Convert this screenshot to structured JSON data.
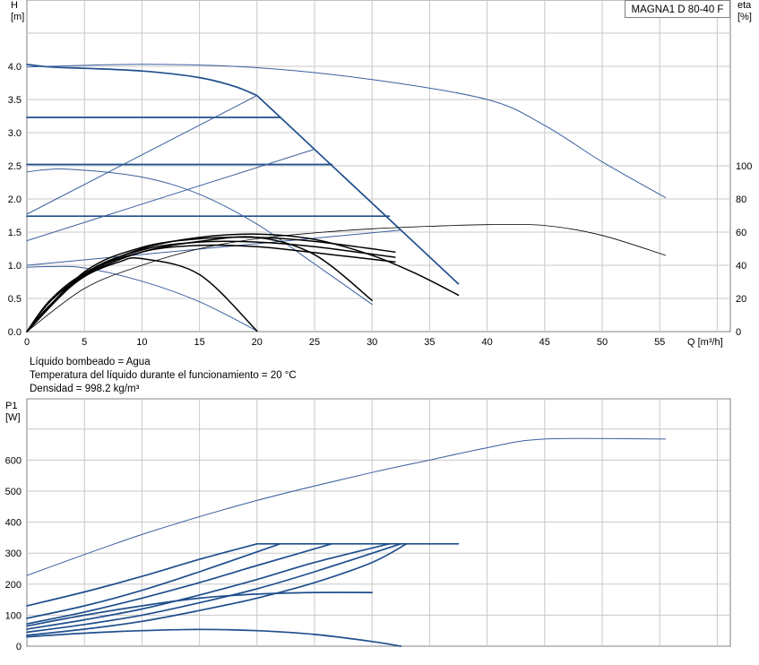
{
  "model": "MAGNA1 D 80-40 F",
  "info": {
    "liquid": "Líquido bombeado = Agua",
    "temperature": "Temperatura del líquido durante el funcionamiento = 20 °C",
    "density": "Densidad = 998.2 kg/m³"
  },
  "colors": {
    "curve": "#1f4e8c",
    "thin": "#3a5f9e",
    "black": "#000000",
    "grid": "#c8c8c8"
  },
  "chart_data": [
    {
      "type": "line",
      "title": "",
      "ylabel": "H\n[m]",
      "y2label": "eta\n[%]",
      "xlabel": "Q [m³/h]",
      "xlim": [
        0,
        60
      ],
      "ylim": [
        0,
        4.5
      ],
      "y2lim": [
        0,
        200
      ],
      "grid": true,
      "x_ticks": [
        "0",
        "5",
        "10",
        "15",
        "20",
        "25",
        "30",
        "35",
        "40",
        "45",
        "50",
        "55"
      ],
      "y_ticks": [
        "0.0",
        "0.5",
        "1.0",
        "1.5",
        "2.0",
        "2.5",
        "3.0",
        "3.5",
        "4.0"
      ],
      "y2_ticks": [
        "0",
        "20",
        "40",
        "60",
        "80",
        "100"
      ],
      "series": [
        {
          "style": "thick",
          "x": [
            0,
            2,
            5,
            10,
            15,
            18,
            20
          ],
          "y": [
            4.03,
            3.99,
            3.97,
            3.93,
            3.83,
            3.7,
            3.56
          ]
        },
        {
          "style": "thick",
          "x": [
            20,
            37.5
          ],
          "y": [
            3.56,
            0.72
          ]
        },
        {
          "style": "thick",
          "x": [
            0,
            22
          ],
          "y": [
            3.23,
            3.23
          ]
        },
        {
          "style": "thick",
          "x": [
            0,
            26.5
          ],
          "y": [
            2.52,
            2.52
          ]
        },
        {
          "style": "thick",
          "x": [
            0,
            31.5
          ],
          "y": [
            1.74,
            1.74
          ]
        },
        {
          "style": "thin",
          "x": [
            0,
            20
          ],
          "y": [
            1.77,
            3.56
          ]
        },
        {
          "style": "thin",
          "x": [
            0,
            25
          ],
          "y": [
            1.37,
            2.75
          ]
        },
        {
          "style": "thin",
          "x": [
            0,
            32.5
          ],
          "y": [
            1.0,
            1.53
          ]
        },
        {
          "style": "thin",
          "x": [
            0,
            3.5,
            10,
            15,
            20,
            25,
            30
          ],
          "y": [
            2.41,
            2.45,
            2.33,
            2.07,
            1.62,
            1.02,
            0.41
          ]
        },
        {
          "style": "thin",
          "x": [
            0,
            2,
            5,
            10,
            15,
            20
          ],
          "y": [
            0.97,
            0.98,
            0.96,
            0.76,
            0.45,
            0.01
          ]
        },
        {
          "style": "thin",
          "x": [
            0,
            10,
            20,
            30,
            40,
            45,
            50,
            55.5
          ],
          "y": [
            3.99,
            4.03,
            3.98,
            3.8,
            3.5,
            3.11,
            2.56,
            2.02
          ]
        },
        {
          "style": "black",
          "x": [
            0,
            2,
            5,
            8,
            10,
            15,
            20
          ],
          "y": [
            0,
            0.4,
            0.83,
            1.05,
            1.1,
            0.86,
            0.01
          ]
        },
        {
          "style": "black",
          "x": [
            0,
            2,
            5,
            10,
            15,
            20,
            25,
            30
          ],
          "y": [
            0,
            0.45,
            0.85,
            1.2,
            1.36,
            1.42,
            1.16,
            0.47
          ]
        },
        {
          "style": "black",
          "x": [
            0,
            2,
            5,
            10,
            15,
            20,
            25,
            30,
            34,
            37.5
          ],
          "y": [
            0,
            0.47,
            0.88,
            1.25,
            1.42,
            1.47,
            1.39,
            1.15,
            0.86,
            0.55
          ]
        },
        {
          "style": "black",
          "x": [
            0,
            5,
            10,
            15,
            20,
            25,
            32
          ],
          "y": [
            0,
            0.85,
            1.2,
            1.3,
            1.28,
            1.19,
            1.05
          ]
        },
        {
          "style": "black",
          "x": [
            0,
            5,
            10,
            15,
            20,
            25,
            32
          ],
          "y": [
            0,
            0.87,
            1.23,
            1.35,
            1.35,
            1.28,
            1.12
          ]
        },
        {
          "style": "black",
          "x": [
            0,
            5,
            10,
            15,
            20,
            25,
            32
          ],
          "y": [
            0,
            0.9,
            1.27,
            1.4,
            1.42,
            1.36,
            1.2
          ]
        },
        {
          "style": "eta",
          "x": [
            0,
            5,
            10,
            15,
            20,
            25,
            30,
            35,
            40,
            45,
            50,
            55.5
          ],
          "y": [
            0,
            26,
            40,
            50,
            56,
            59.5,
            62,
            63.5,
            64.5,
            64,
            58,
            46
          ]
        }
      ]
    },
    {
      "type": "line",
      "title": "",
      "ylabel": "P1\n[W]",
      "xlim": [
        0,
        60
      ],
      "ylim": [
        0,
        700
      ],
      "grid": true,
      "y_ticks": [
        "0",
        "100",
        "200",
        "300",
        "400",
        "500",
        "600"
      ],
      "series": [
        {
          "style": "thin",
          "x": [
            0,
            10,
            20,
            30,
            35,
            40,
            45,
            55.5
          ],
          "y": [
            228,
            360,
            470,
            560,
            600,
            640,
            668,
            668
          ]
        },
        {
          "style": "thick",
          "x": [
            20,
            37.5
          ],
          "y": [
            330,
            330
          ]
        },
        {
          "style": "thick",
          "x": [
            0,
            5,
            10,
            15,
            20
          ],
          "y": [
            130,
            175,
            225,
            280,
            330
          ]
        },
        {
          "style": "thick",
          "x": [
            0,
            5,
            10,
            15,
            22
          ],
          "y": [
            90,
            130,
            180,
            240,
            330
          ]
        },
        {
          "style": "thick",
          "x": [
            0,
            5,
            10,
            15,
            20,
            26.5
          ],
          "y": [
            72,
            110,
            155,
            205,
            260,
            330
          ]
        },
        {
          "style": "thick",
          "x": [
            0,
            5,
            10,
            15,
            20,
            25,
            31.5
          ],
          "y": [
            55,
            85,
            120,
            165,
            215,
            270,
            330
          ]
        },
        {
          "style": "thick",
          "x": [
            0,
            5,
            10,
            15,
            20,
            25,
            32.5
          ],
          "y": [
            45,
            70,
            100,
            140,
            185,
            240,
            330
          ]
        },
        {
          "style": "thick",
          "x": [
            0,
            5,
            10,
            15,
            20,
            25,
            30,
            33
          ],
          "y": [
            35,
            55,
            80,
            115,
            155,
            205,
            270,
            330
          ]
        },
        {
          "style": "thick",
          "x": [
            0,
            5,
            10,
            15,
            20,
            25,
            30
          ],
          "y": [
            65,
            100,
            130,
            155,
            168,
            173,
            173
          ]
        },
        {
          "style": "thick",
          "x": [
            0,
            5,
            10,
            15,
            20,
            25,
            30,
            32.5
          ],
          "y": [
            30,
            42,
            50,
            54,
            50,
            38,
            15,
            0
          ]
        }
      ]
    }
  ]
}
